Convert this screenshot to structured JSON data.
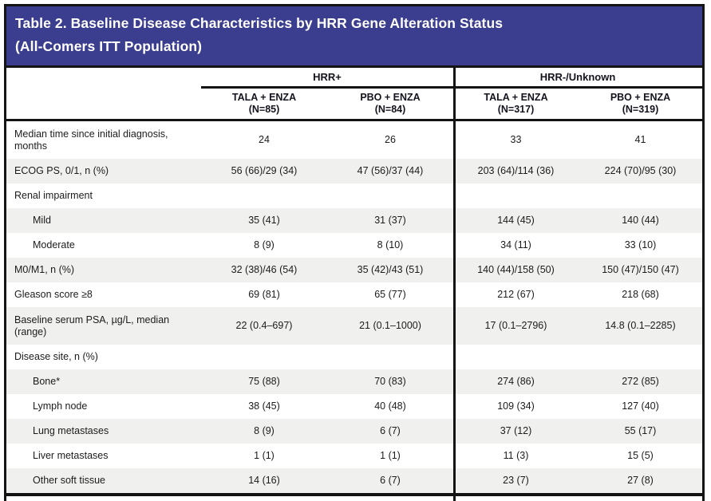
{
  "title": {
    "line1": "Table 2. Baseline Disease Characteristics by HRR Gene Alteration Status",
    "line2": "(All-Comers ITT Population)"
  },
  "colors": {
    "banner_bg": "#3b3d8e",
    "alt_row_bg": "#f0f0ee",
    "border": "#141414"
  },
  "table": {
    "groups": [
      {
        "label": "HRR+"
      },
      {
        "label": "HRR-/Unknown"
      }
    ],
    "columns": [
      {
        "arm": "TALA + ENZA",
        "n": "(N=85)"
      },
      {
        "arm": "PBO + ENZA",
        "n": "(N=84)"
      },
      {
        "arm": "TALA + ENZA",
        "n": "(N=317)"
      },
      {
        "arm": "PBO + ENZA",
        "n": "(N=319)"
      }
    ],
    "rows": [
      {
        "label": "Median time since initial diagnosis, months",
        "values": [
          "24",
          "26",
          "33",
          "41"
        ]
      },
      {
        "label": "ECOG PS, 0/1, n (%)",
        "values": [
          "56 (66)/29 (34)",
          "47 (56)/37 (44)",
          "203 (64)/114 (36)",
          "224 (70)/95 (30)"
        ]
      },
      {
        "label": "Renal impairment",
        "values": [
          "",
          "",
          "",
          ""
        ]
      },
      {
        "label": "Mild",
        "values": [
          "35 (41)",
          "31 (37)",
          "144 (45)",
          "140 (44)"
        ]
      },
      {
        "label": "Moderate",
        "values": [
          "8 (9)",
          "8 (10)",
          "34 (11)",
          "33 (10)"
        ]
      },
      {
        "label": "M0/M1, n (%)",
        "values": [
          "32 (38)/46 (54)",
          "35 (42)/43 (51)",
          "140 (44)/158 (50)",
          "150 (47)/150 (47)"
        ]
      },
      {
        "label": "Gleason score ≥8",
        "values": [
          "69 (81)",
          "65 (77)",
          "212 (67)",
          "218 (68)"
        ]
      },
      {
        "label": "Baseline serum PSA, µg/L, median (range)",
        "values": [
          "22 (0.4–697)",
          "21 (0.1–1000)",
          "17 (0.1–2796)",
          "14.8 (0.1–2285)"
        ]
      },
      {
        "label": "Disease site, n (%)",
        "values": [
          "",
          "",
          "",
          ""
        ]
      },
      {
        "label": "Bone*",
        "values": [
          "75 (88)",
          "70 (83)",
          "274 (86)",
          "272 (85)"
        ]
      },
      {
        "label": "Lymph node",
        "values": [
          "38 (45)",
          "40 (48)",
          "109 (34)",
          "127 (40)"
        ]
      },
      {
        "label": "Lung metastases",
        "values": [
          "8 (9)",
          "6 (7)",
          "37 (12)",
          "55 (17)"
        ]
      },
      {
        "label": "Liver metastases",
        "values": [
          "1 (1)",
          "1 (1)",
          "11 (3)",
          "15 (5)"
        ]
      },
      {
        "label": "Other soft tissue",
        "values": [
          "14 (16)",
          "6 (7)",
          "23 (7)",
          "27 (8)"
        ]
      }
    ]
  }
}
